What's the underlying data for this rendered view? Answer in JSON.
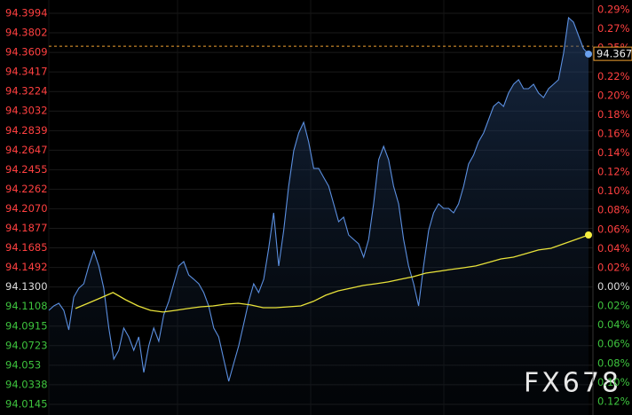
{
  "chart_data": {
    "type": "line",
    "series": [
      {
        "name": "price",
        "color": "#5b8fe0",
        "values": [
          94.107,
          94.1114,
          94.114,
          94.107,
          94.0878,
          94.1201,
          94.1288,
          94.1332,
          94.1507,
          94.1655,
          94.1507,
          94.1288,
          94.0896,
          94.059,
          94.0677,
          94.0896,
          94.0808,
          94.0677,
          94.0808,
          94.0459,
          94.0721,
          94.0896,
          94.0765,
          94.1027,
          94.1158,
          94.1332,
          94.1507,
          94.155,
          94.1419,
          94.1376,
          94.1332,
          94.1245,
          94.1114,
          94.0896,
          94.0808,
          94.059,
          94.0372,
          94.0547,
          94.0721,
          94.0939,
          94.1158,
          94.1332,
          94.1245,
          94.1376,
          94.1681,
          94.203,
          94.1507,
          94.1856,
          94.2292,
          94.2641,
          94.2816,
          94.2921,
          94.2729,
          94.2467,
          94.2467,
          94.2379,
          94.2292,
          94.2118,
          94.1943,
          94.1987,
          94.1812,
          94.1768,
          94.1725,
          94.1594,
          94.1768,
          94.2118,
          94.2554,
          94.2685,
          94.2554,
          94.2292,
          94.2118,
          94.1768,
          94.1507,
          94.1332,
          94.1114,
          94.1507,
          94.1856,
          94.203,
          94.2118,
          94.2074,
          94.2074,
          94.203,
          94.2118,
          94.2292,
          94.251,
          94.2598,
          94.2729,
          94.2816,
          94.2947,
          94.3078,
          94.3121,
          94.3078,
          94.3209,
          94.3296,
          94.334,
          94.3252,
          94.3252,
          94.3296,
          94.3209,
          94.3165,
          94.3252,
          94.3296,
          94.334,
          94.3601,
          94.395,
          94.3907,
          94.3776,
          94.3645,
          94.3593
        ]
      },
      {
        "name": "average",
        "color": "#e8e23a",
        "values": [
          94.1088,
          94.114,
          94.1192,
          94.1245,
          94.1175,
          94.1114,
          94.107,
          94.1053,
          94.107,
          94.1088,
          94.1105,
          94.1114,
          94.1131,
          94.114,
          94.1123,
          94.1096,
          94.1096,
          94.1105,
          94.1114,
          94.1158,
          94.1219,
          94.1262,
          94.1288,
          94.1315,
          94.1332,
          94.135,
          94.1376,
          94.1402,
          94.1437,
          94.1454,
          94.1472,
          94.1489,
          94.1507,
          94.1541,
          94.1576,
          94.1594,
          94.1629,
          94.1664,
          94.1681,
          94.1725,
          94.1768,
          94.1812
        ]
      }
    ],
    "last_price": {
      "value": 94.367,
      "label": "94.3670",
      "color": "#f0a030"
    },
    "ylim": [
      94.004,
      94.4125
    ],
    "yticks": [
      94.3994,
      94.3802,
      94.3609,
      94.3417,
      94.3224,
      94.3032,
      94.2839,
      94.2647,
      94.2455,
      94.2262,
      {
        "value": 94.207,
        "label": "94.2070"
      },
      94.1877,
      94.1685,
      94.1492,
      {
        "value": 94.13,
        "label": "94.1300"
      },
      94.1108,
      94.0915,
      94.0723,
      94.053,
      94.0338,
      94.0145
    ],
    "y2lim": [
      -0.134,
      0.3
    ],
    "y2ticks": [
      {
        "value": 0.29,
        "label": "0.29%"
      },
      {
        "value": 0.27,
        "label": "0.27%"
      },
      {
        "value": 0.25,
        "label": "0.25%"
      },
      {
        "value": 0.22,
        "label": "0.22%"
      },
      {
        "value": 0.2,
        "label": "0.20%"
      },
      {
        "value": 0.18,
        "label": "0.18%"
      },
      {
        "value": 0.16,
        "label": "0.16%"
      },
      {
        "value": 0.14,
        "label": "0.14%"
      },
      {
        "value": 0.12,
        "label": "0.12%"
      },
      {
        "value": 0.1,
        "label": "0.10%"
      },
      {
        "value": 0.08,
        "label": "0.08%"
      },
      {
        "value": 0.06,
        "label": "0.06%"
      },
      {
        "value": 0.04,
        "label": "0.04%"
      },
      {
        "value": 0.02,
        "label": "0.02%"
      },
      {
        "value": 0,
        "label": "0.00%"
      },
      {
        "value": -0.02,
        "label": "0.02%"
      },
      {
        "value": -0.04,
        "label": "0.04%"
      },
      {
        "value": -0.06,
        "label": "0.06%"
      },
      {
        "value": -0.08,
        "label": "0.08%"
      },
      {
        "value": -0.1,
        "label": "0.10%"
      },
      {
        "value": -0.12,
        "label": "0.12%"
      }
    ],
    "up_color": "#ff4040",
    "down_color": "#3ec43e",
    "flat_color": "#dddddd",
    "grid": true,
    "watermark": "FX678"
  }
}
